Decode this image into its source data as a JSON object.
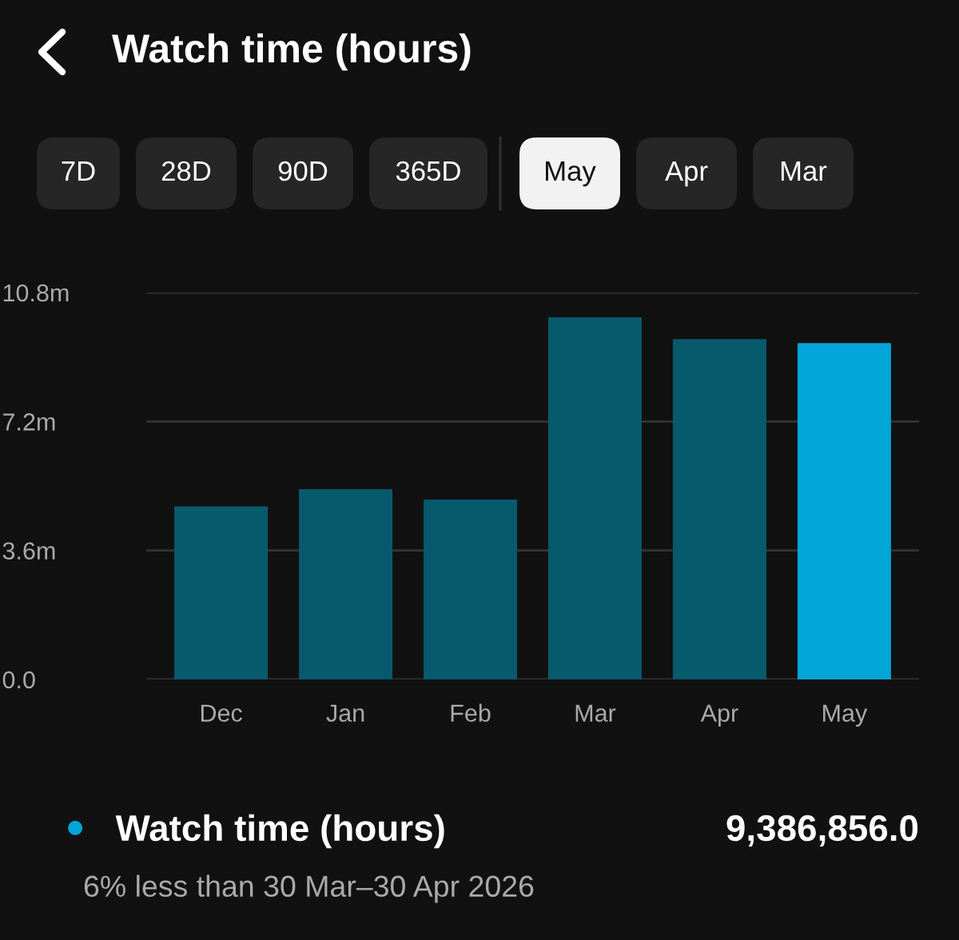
{
  "chart_data": {
    "type": "bar",
    "title": "Watch time (hours)",
    "categories": [
      "Dec",
      "Jan",
      "Feb",
      "Mar",
      "Apr",
      "May"
    ],
    "series": [
      {
        "name": "Watch time (hours)",
        "color": "#02a6d6",
        "colors": [
          "#075a6c",
          "#075a6c",
          "#075a6c",
          "#075a6c",
          "#075a6c",
          "#02a6d6"
        ],
        "values": [
          4.83,
          5.31,
          5.02,
          10.11,
          9.5,
          9.39
        ]
      }
    ],
    "ylim": [
      0,
      10.8
    ],
    "yticks": [
      {
        "value": 0,
        "label": "0.0"
      },
      {
        "value": 3.6,
        "label": "3.6m"
      },
      {
        "value": 7.2,
        "label": "7.2m"
      },
      {
        "value": 10.8,
        "label": "10.8m"
      }
    ],
    "grid": "y",
    "legend": "bottom left",
    "annotations": [
      "7D",
      "28D",
      "90D",
      "365D",
      "May",
      "Apr",
      "Mar",
      "9,386,856.0",
      "6% less than 30 Mar–30 Apr 2026"
    ]
  }
}
